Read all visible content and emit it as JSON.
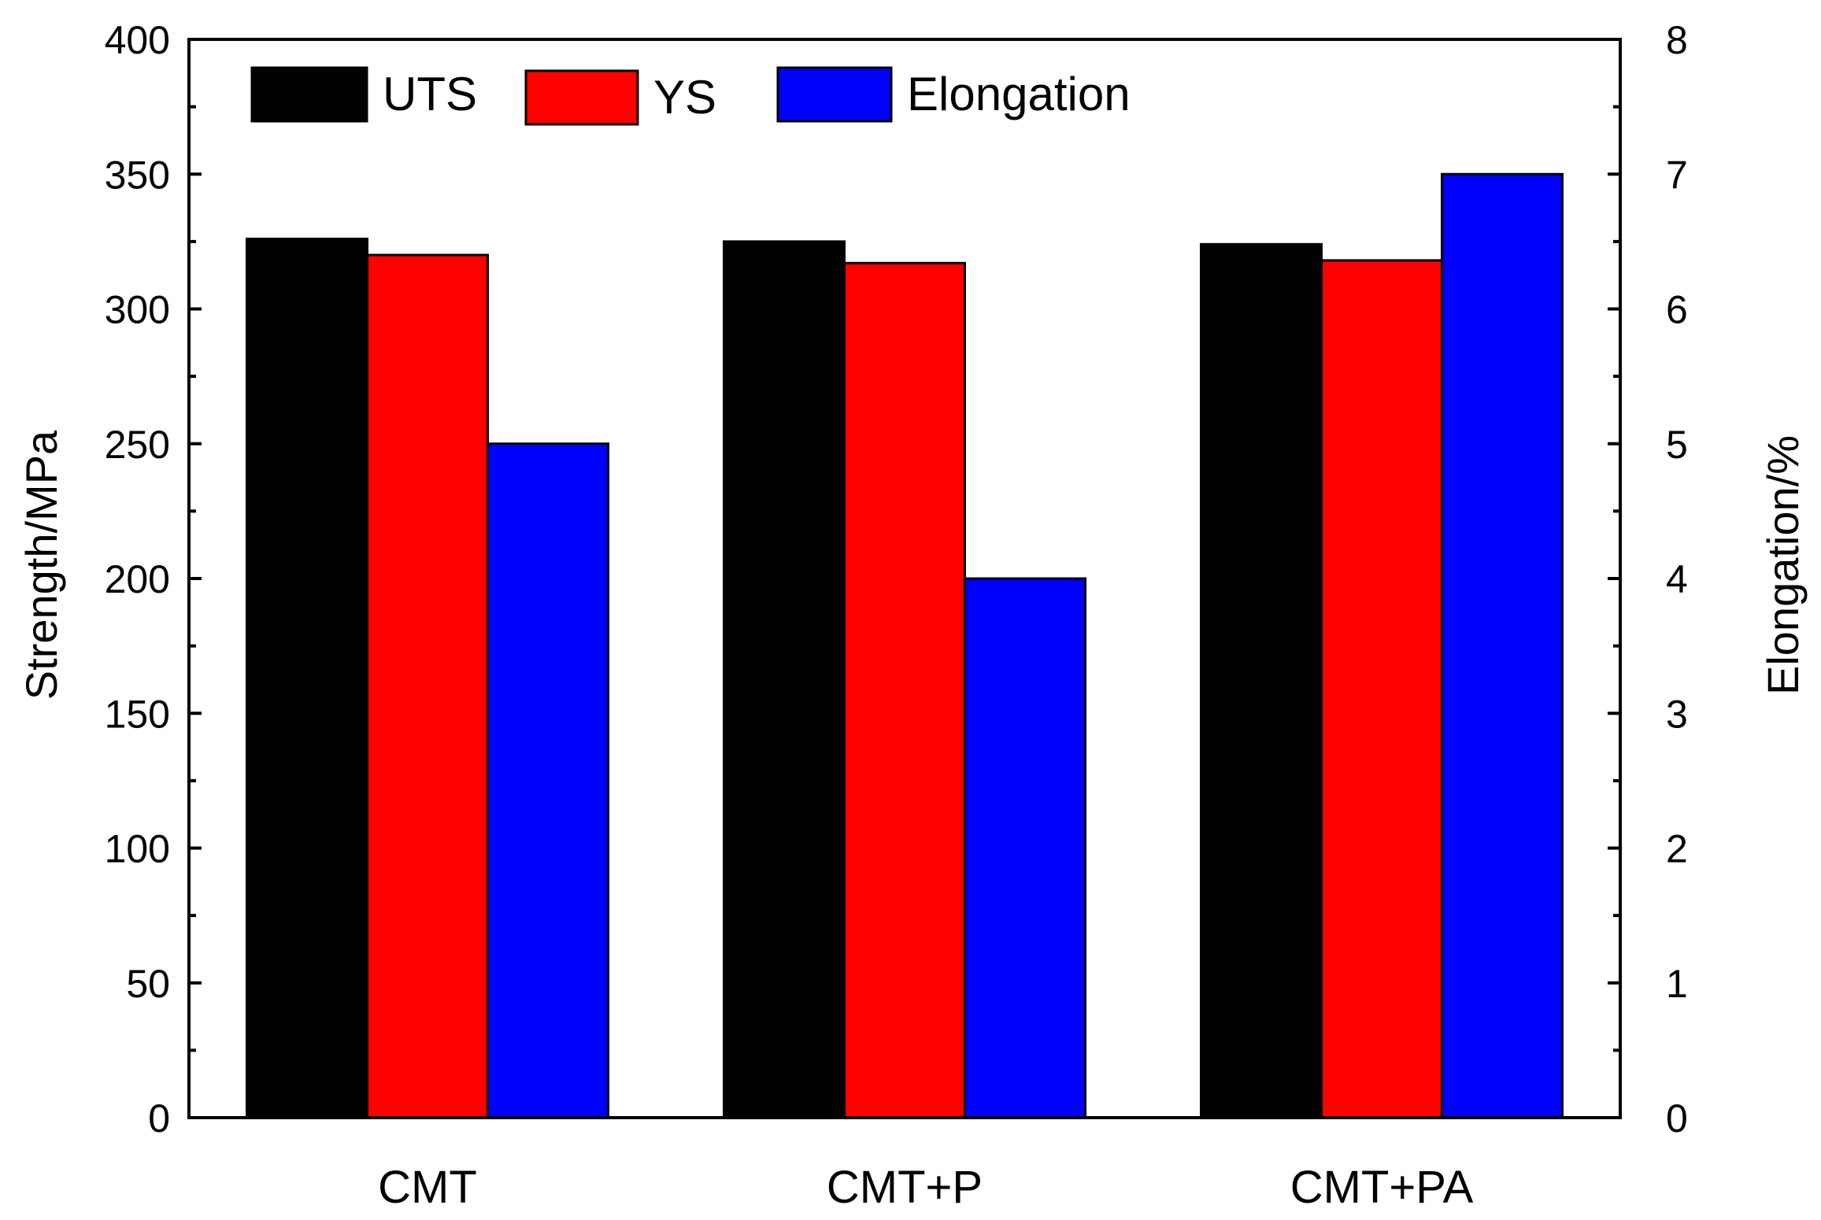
{
  "chart_data": {
    "type": "bar",
    "categories": [
      "CMT",
      "CMT+P",
      "CMT+PA"
    ],
    "series": [
      {
        "name": "UTS",
        "axis": "left",
        "values": [
          326,
          325,
          324
        ]
      },
      {
        "name": "YS",
        "axis": "left",
        "values": [
          320,
          317,
          318
        ]
      },
      {
        "name": "Elongation",
        "axis": "right",
        "values": [
          5.0,
          4.0,
          7.0
        ]
      }
    ],
    "ylabel_left": "Strength/MPa",
    "ylabel_right": "Elongation/%",
    "ylim_left": [
      0,
      400
    ],
    "ylim_right": [
      0,
      8
    ],
    "yticks_left": [
      "0",
      "50",
      "100",
      "150",
      "200",
      "250",
      "300",
      "350",
      "400"
    ],
    "yticks_right": [
      "0",
      "1",
      "2",
      "3",
      "4",
      "5",
      "6",
      "7",
      "8"
    ],
    "legend_position": "top-left",
    "grid": false
  },
  "colors": {
    "UTS": "#000000",
    "YS": "#ff0000",
    "Elongation": "#0000ff"
  }
}
